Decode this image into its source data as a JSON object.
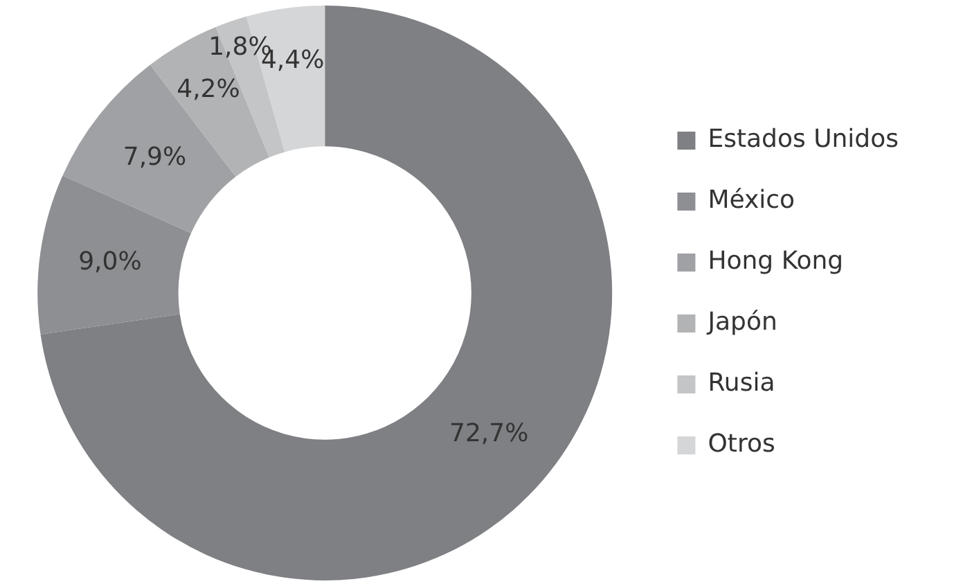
{
  "chart_data": {
    "type": "donut",
    "categories": [
      "Estados Unidos",
      "México",
      "Hong Kong",
      "Japón",
      "Rusia",
      "Otros"
    ],
    "values": [
      72.7,
      9.0,
      7.9,
      4.2,
      1.8,
      4.4
    ],
    "value_labels": [
      "72,7%",
      "9,0%",
      "7,9%",
      "4,2%",
      "1,8%",
      "4,4%"
    ],
    "colors": [
      "#7f8084",
      "#8e8f93",
      "#a0a1a4",
      "#b2b3b5",
      "#c4c5c7",
      "#d5d6d8"
    ],
    "legend": "right"
  }
}
